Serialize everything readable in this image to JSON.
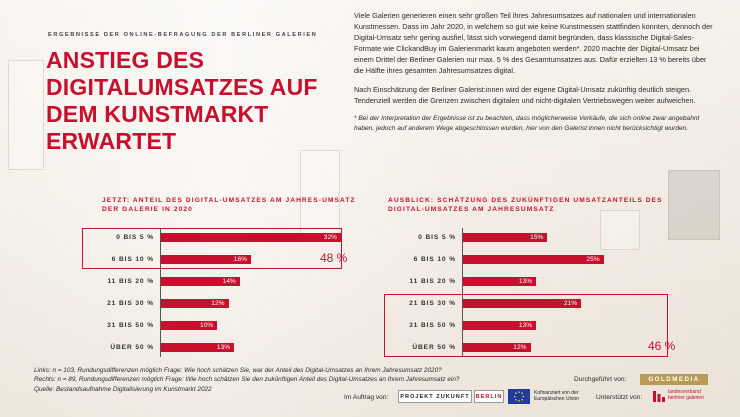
{
  "header": {
    "subtitle": "ERGEBNISSE DER ONLINE-BEFRAGUNG DER BERLINER GALERIEN",
    "headline_lines": [
      "ANSTIEG DES",
      "DIGITALUMSATZES AUF",
      "DEM KUNSTMARKT",
      "ERWARTET"
    ]
  },
  "intro": {
    "paragraph1": "Viele Galerien generieren einen sehr großen Teil ihres Jahresumsatzes auf nationalen und internationalen Kunstmessen. Dass im Jahr 2020, in welchem so gut wie keine Kunstmessen stattfinden konnten, dennoch der Digital-Umsatz sehr gering ausfiel, lässt sich vorwiegend damit begründen, dass klassische Digital-Sales-Formate wie ClickandBuy im Galerienmarkt kaum angeboten werden*. 2020 machte der Digital-Umsatz bei einem Drittel der Berliner Galerien nur max. 5 % des Gesamtumsatzes aus. Dafür erzielten 13 % bereits über die Hälfte ihres gesamten Jahresumsatzes digital.",
    "paragraph2": "Nach Einschätzung der Berliner Galerist:innen wird der eigene Digital-Umsatz zukünftig deutlich steigen. Tendenziell werden die Grenzen zwischen digitalen und nicht-digitalen Vertriebswegen weiter aufweichen.",
    "note": "* Bei der Interpretation der Ergebnisse ist zu beachten, dass möglicherweise Verkäufe, die sich online zwar angebahnt haben, jedoch auf anderem Wege abgeschlossen wurden, hier von den Galerist:innen nicht berücksichtigt wurden."
  },
  "colors": {
    "accent": "#c8102e",
    "gold": "#b89a52"
  },
  "chart_data": [
    {
      "type": "bar",
      "orientation": "horizontal",
      "title_lines": [
        "JETZT: ANTEIL DES DIGITAL-UMSATZES AM JAHRES-UMSATZ",
        "DER GALERIE IN 2020"
      ],
      "categories": [
        "0 BIS 5 %",
        "6 BIS 10 %",
        "11 BIS 20 %",
        "21 BIS 30 %",
        "31 BIS 50 %",
        "ÜBER 50 %"
      ],
      "values": [
        32,
        16,
        14,
        12,
        10,
        13
      ],
      "value_labels": [
        "32%",
        "16%",
        "14%",
        "12%",
        "10%",
        "13%"
      ],
      "highlight": {
        "categories": [
          "0 BIS 5 %",
          "6 BIS 10 %"
        ],
        "label": "48 %"
      },
      "xlim": [
        0,
        32
      ]
    },
    {
      "type": "bar",
      "orientation": "horizontal",
      "title_lines": [
        "AUSBLICK: SCHÄTZUNG DES ZUKÜNFTIGEN UMSATZANTEILS DES",
        "DIGITAL-UMSATZES AM JAHRESUMSATZ"
      ],
      "categories": [
        "0 BIS 5 %",
        "6 BIS 10 %",
        "11 BIS 20 %",
        "21 BIS 30 %",
        "31 BIS 50 %",
        "ÜBER 50 %"
      ],
      "values": [
        15,
        25,
        13,
        21,
        13,
        12
      ],
      "value_labels": [
        "15%",
        "25%",
        "13%",
        "21%",
        "13%",
        "12%"
      ],
      "highlight": {
        "categories": [
          "21 BIS 30 %",
          "31 BIS 50 %",
          "ÜBER 50 %"
        ],
        "label": "46 %"
      },
      "xlim": [
        0,
        32
      ]
    }
  ],
  "footer": {
    "notes": [
      "Links: n = 103, Rundungsdifferenzen möglich Frage: Wie hoch schätzen Sie, war der Anteil des Digital-Umsatzes an Ihrem Jahresumsatz 2020?",
      "Rechts: n =  89, Rundungsdifferenzen möglich Frage: Wie hoch schätzen Sie den zukünftigen Anteil des Digital-Umsatzes an Ihrem Jahresumsatz ein?",
      "Quelle: Bestandsaufnahme Digitalisierung im Kunstmarkt 2022"
    ],
    "durchgefuehrt": "Durchgeführt von:",
    "goldmedia": "GOLDMEDIA",
    "im_auftrag": "Im Auftrag von:",
    "projekt_zukunft": "PROJEKT ZUKUNFT",
    "berlin": "BERLIN",
    "eu_text_lines": [
      "Kofinanziert von der",
      "Europäischen Union"
    ],
    "unterstuetzt": "Unterstützt von:",
    "lvbg_lines": [
      "landesverband",
      "berliner galerien"
    ]
  }
}
